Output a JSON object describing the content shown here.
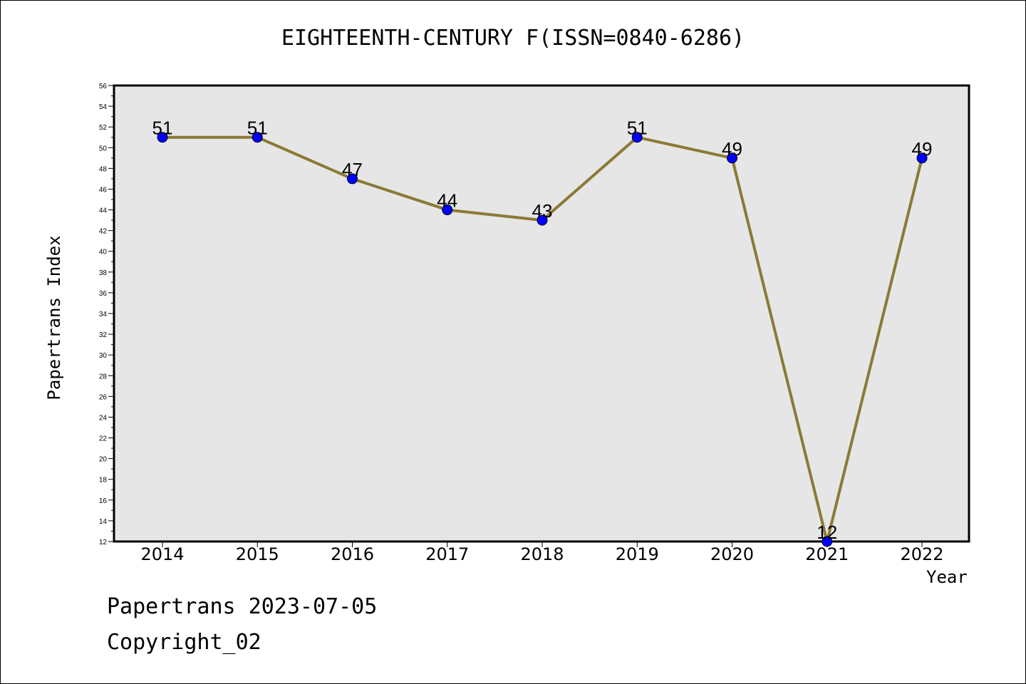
{
  "chart_data": {
    "type": "line",
    "title": "EIGHTEENTH-CENTURY F(ISSN=0840-6286)",
    "xlabel": "Year",
    "ylabel": "Papertrans Index",
    "categories": [
      "2014",
      "2015",
      "2016",
      "2017",
      "2018",
      "2019",
      "2020",
      "2021",
      "2022"
    ],
    "series": [
      {
        "values": [
          51,
          51,
          47,
          44,
          43,
          51,
          49,
          12,
          49
        ]
      }
    ],
    "ylim": [
      12,
      56
    ],
    "ytick_step": 2,
    "grid": false,
    "line_color": "#8b7a35",
    "marker_color": "#0000ff",
    "plot_background": "#e6e6e6"
  },
  "footer": {
    "line1": "Papertrans 2023-07-05",
    "line2": "Copyright_02"
  }
}
